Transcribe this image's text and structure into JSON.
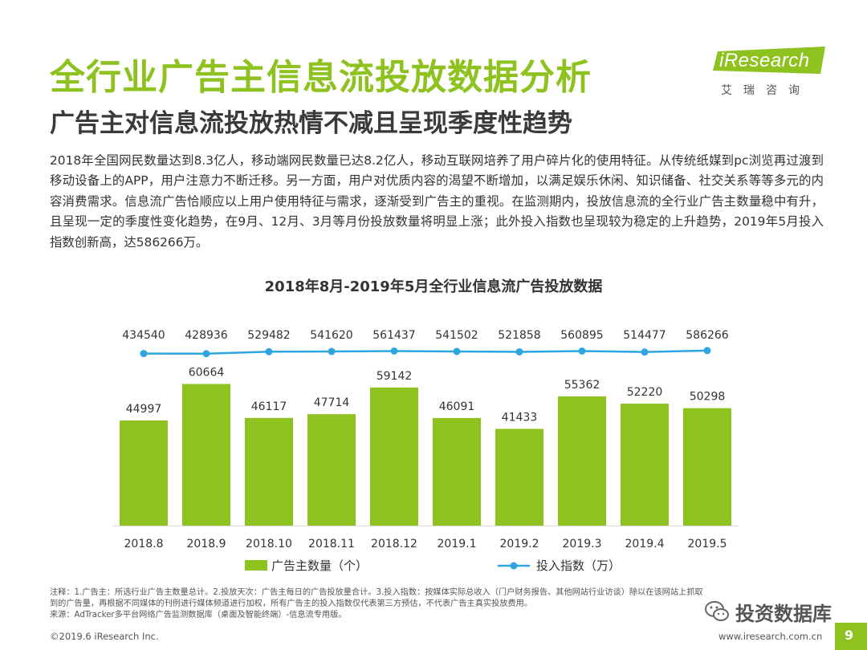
{
  "header": {
    "title": "全行业广告主信息流投放数据分析",
    "subtitle": "广告主对信息流投放热情不减且呈现季度性趋势"
  },
  "logo": {
    "brand_i": "i",
    "brand_rest": "Research",
    "cn": "艾瑞咨询"
  },
  "body_text": "2018年全国网民数量达到8.3亿人，移动端网民数量已达8.2亿人，移动互联网培养了用户碎片化的使用特征。从传统纸媒到pc浏览再过渡到移动设备上的APP，用户注意力不断迁移。另一方面，用户对优质内容的渴望不断增加，以满足娱乐休闲、知识储备、社交关系等等多元的内容消费需求。信息流广告恰顺应以上用户使用特征与需求，逐渐受到广告主的重视。在监测期内，投放信息流的全行业广告主数量稳中有升，且呈现一定的季度性变化趋势，在9月、12月、3月等月份投放数量将明显上涨；此外投入指数也呈现较为稳定的上升趋势，2019年5月投入指数创新高，达586266万。",
  "chart_data": {
    "type": "bar",
    "title": "2018年8月-2019年5月全行业信息流广告投放数据",
    "categories": [
      "2018.8",
      "2018.9",
      "2018.10",
      "2018.11",
      "2018.12",
      "2019.1",
      "2019.2",
      "2019.3",
      "2019.4",
      "2019.5"
    ],
    "series": [
      {
        "name": "广告主数量（个）",
        "type": "bar",
        "color": "#8dc21f",
        "values": [
          44997,
          60664,
          46117,
          47714,
          59142,
          46091,
          41433,
          55362,
          52220,
          50298
        ]
      },
      {
        "name": "投入指数（万）",
        "type": "line",
        "color": "#2ea7e0",
        "values": [
          434540,
          428936,
          529482,
          541620,
          561437,
          541502,
          521858,
          560895,
          514477,
          586266
        ]
      }
    ],
    "legend_position": "bottom",
    "grid": false
  },
  "notes": [
    "注释：1.广告主：所选行业广告主数量总计。2.投放天次：广告主每日的广告投放量合计。3.投入指数：按媒体实际总收入（门户财务报告、其他网站行业访谈）除以在该网站上抓取",
    "到的广告量，再根据不同媒体的刊例进行媒体频道进行加权，所有广告主的投入指数仅代表第三方预估，不代表广告主真实投放费用。",
    "来源：AdTracker多平台网络广告监测数据库（桌面及智能终端）-信息流专用版。"
  ],
  "footer": {
    "copyright": "©2019.6 iResearch Inc.",
    "website": "www.iresearch.com.cn",
    "page": "9"
  },
  "watermark": {
    "text": "投资数据库"
  }
}
